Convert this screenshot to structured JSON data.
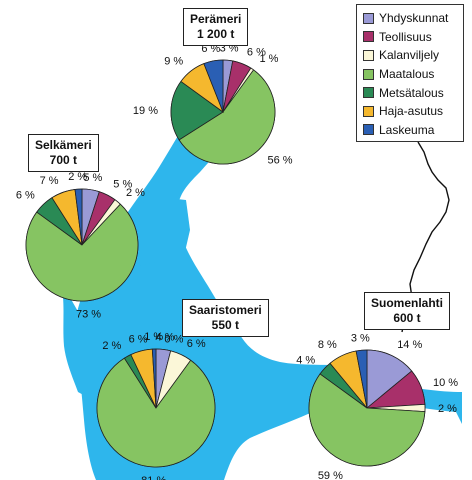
{
  "chart_data": {
    "type": "pie",
    "categories": [
      "Yhdyskunnat",
      "Teollisuus",
      "Kalanviljely",
      "Maatalous",
      "Metsätalous",
      "Haja-asutus",
      "Laskeuma"
    ],
    "colors": [
      "#9a9ad6",
      "#a8306a",
      "#fbf7d8",
      "#86c462",
      "#2a8a55",
      "#f5b82e",
      "#2a5fb4"
    ],
    "pies": [
      {
        "name_line1": "Perämeri",
        "name_line2": "1 200 t",
        "values": [
          3,
          6,
          1,
          56,
          19,
          9,
          6
        ],
        "labels": [
          "3 %",
          "6 %",
          "1 %",
          "56 %",
          "19 %",
          "9 %",
          "6 %"
        ]
      },
      {
        "name_line1": "Selkämeri",
        "name_line2": "700 t",
        "values": [
          5,
          5,
          2,
          73,
          6,
          7,
          2
        ],
        "labels": [
          "5 %",
          "5 %",
          "2 %",
          "73 %",
          "6 %",
          "7 %",
          "2 %"
        ]
      },
      {
        "name_line1": "Saaristomeri",
        "name_line2": "550 t",
        "values": [
          4,
          0,
          6,
          81,
          2,
          6,
          1
        ],
        "labels": [
          "4 %",
          "0 %",
          "6 %",
          "81 %",
          "2 %",
          "6 %",
          "1 %"
        ]
      },
      {
        "name_line1": "Suomenlahti",
        "name_line2": "600 t",
        "values": [
          14,
          10,
          2,
          59,
          4,
          8,
          3
        ],
        "labels": [
          "14 %",
          "10 %",
          "2 %",
          "59 %",
          "4 %",
          "8 %",
          "3 %"
        ]
      }
    ]
  },
  "colors": {
    "sea": "#2eb6ec",
    "land": "#ffffff",
    "border_line": "#111111"
  }
}
